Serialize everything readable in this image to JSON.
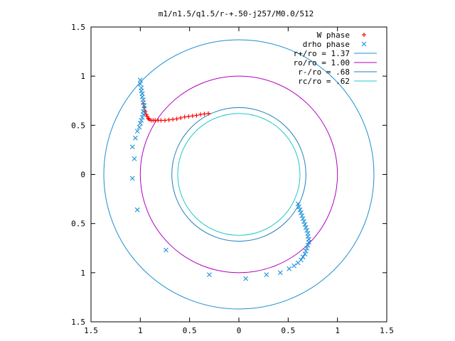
{
  "chart_data": {
    "type": "scatter",
    "title": "m1/n1.5/q1.5/r-+.50-j257/M0.0/512",
    "xlabel": "",
    "ylabel": "",
    "xlim": [
      -1.5,
      1.5
    ],
    "ylim": [
      -1.5,
      1.5
    ],
    "x_tick_labels": [
      "1.5",
      "1",
      "0.5",
      "0",
      "0.5",
      "1",
      "1.5"
    ],
    "y_tick_labels": [
      "1.5",
      "1",
      "0.5",
      "0",
      "0.5",
      "1",
      "1.5"
    ],
    "grid": false,
    "legend_position": "top-right",
    "series": [
      {
        "name": "W phase",
        "kind": "points",
        "marker": "+",
        "color": "#ff0000",
        "x": [
          -0.97,
          -0.96,
          -0.95,
          -0.94,
          -0.93,
          -0.92,
          -0.91,
          -0.89,
          -0.87,
          -0.85,
          -0.82,
          -0.79,
          -0.75,
          -0.71,
          -0.67,
          -0.63,
          -0.59,
          -0.55,
          -0.51,
          -0.47,
          -0.43,
          -0.39,
          -0.35,
          -0.31
        ],
        "y": [
          0.72,
          0.68,
          0.64,
          0.61,
          0.59,
          0.57,
          0.56,
          0.55,
          0.55,
          0.55,
          0.55,
          0.55,
          0.55,
          0.555,
          0.56,
          0.565,
          0.575,
          0.585,
          0.59,
          0.595,
          0.6,
          0.61,
          0.615,
          0.62
        ]
      },
      {
        "name": "drho phase",
        "kind": "points",
        "marker": "x",
        "color": "#1e90d8",
        "x": [
          -1.08,
          -1.06,
          -1.08,
          -1.05,
          -1.03,
          -1.01,
          -1.0,
          -0.99,
          -0.98,
          -0.97,
          -0.97,
          -0.96,
          -0.96,
          -0.97,
          -0.97,
          -0.98,
          -0.98,
          -0.99,
          -0.99,
          -1.0,
          -1.0,
          0.6,
          0.61,
          0.62,
          0.63,
          0.64,
          0.65,
          0.66,
          0.67,
          0.68,
          0.69,
          0.7,
          0.7,
          0.71,
          0.71,
          0.7,
          0.69,
          0.68,
          0.67,
          0.65,
          0.63,
          0.6,
          0.56,
          0.51,
          0.42,
          0.28,
          0.07,
          -0.3,
          -0.74,
          -1.03
        ],
        "y": [
          -0.04,
          0.16,
          0.28,
          0.37,
          0.44,
          0.48,
          0.52,
          0.55,
          0.58,
          0.61,
          0.64,
          0.67,
          0.7,
          0.73,
          0.76,
          0.79,
          0.82,
          0.85,
          0.88,
          0.92,
          0.96,
          -0.3,
          -0.33,
          -0.36,
          -0.39,
          -0.42,
          -0.45,
          -0.48,
          -0.51,
          -0.54,
          -0.57,
          -0.6,
          -0.63,
          -0.66,
          -0.69,
          -0.72,
          -0.75,
          -0.78,
          -0.81,
          -0.84,
          -0.87,
          -0.9,
          -0.93,
          -0.96,
          -1.0,
          -1.02,
          -1.06,
          -1.02,
          -0.77,
          -0.36
        ]
      },
      {
        "name": "r+/ro = 1.37",
        "kind": "circle",
        "radius": 1.37,
        "color": "#1a8fd0"
      },
      {
        "name": "ro/ro = 1.00",
        "kind": "circle",
        "radius": 1.0,
        "color": "#b000c0"
      },
      {
        "name": "r-/ro = .68",
        "kind": "circle",
        "radius": 0.68,
        "color": "#1f7fbf"
      },
      {
        "name": "rc/ro = .62",
        "kind": "circle",
        "radius": 0.62,
        "color": "#22c8c8"
      }
    ]
  }
}
